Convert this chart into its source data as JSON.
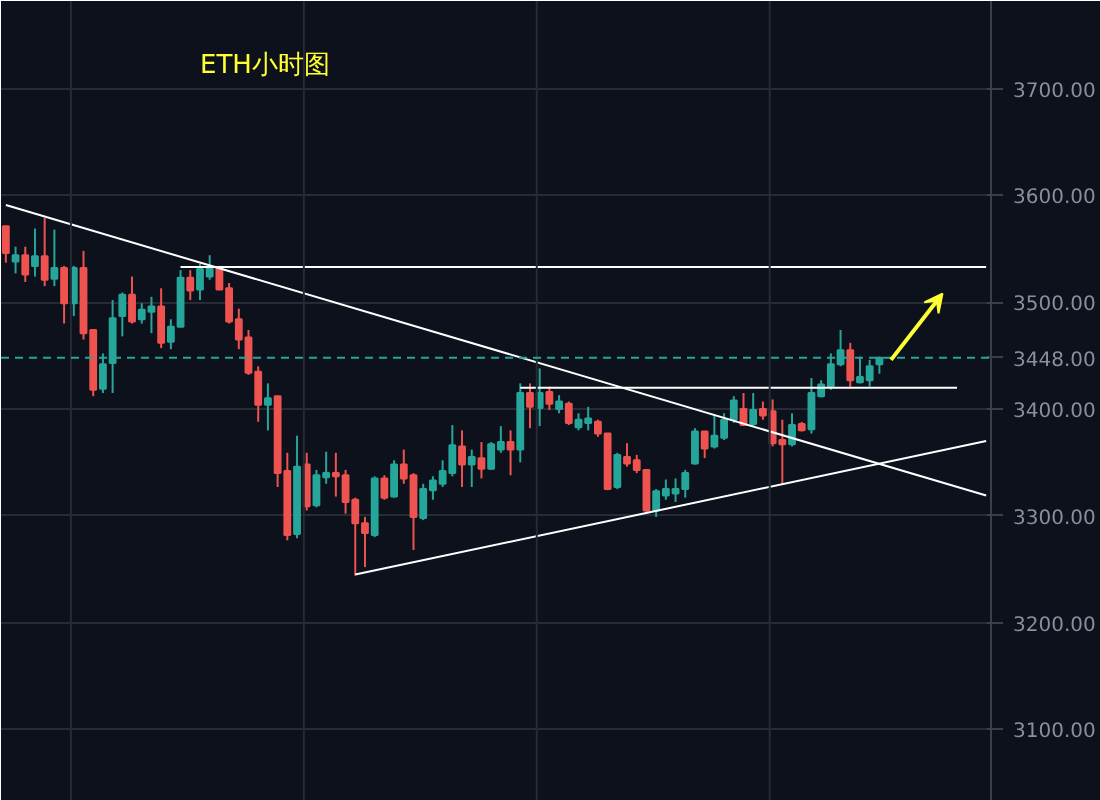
{
  "chart_data": {
    "type": "candlestick",
    "title": "ETH小时图",
    "categories": [
      null,
      null,
      null,
      null,
      null,
      null,
      null,
      null,
      null,
      null,
      null,
      null,
      null,
      null,
      null,
      null,
      null,
      null,
      null,
      null,
      null,
      null,
      null,
      null,
      null,
      null,
      null,
      null,
      null,
      null,
      null,
      null,
      null,
      null,
      null,
      null,
      null,
      null,
      null,
      null,
      null,
      null,
      null,
      null,
      null,
      null,
      null,
      null,
      null,
      null,
      null,
      null,
      null,
      null,
      null,
      null,
      null,
      null,
      null,
      null,
      null,
      null,
      null,
      null,
      null,
      null,
      null,
      null,
      null,
      null,
      null,
      null,
      null,
      null,
      null,
      null,
      null,
      null,
      null,
      null,
      null,
      null,
      null,
      null,
      null,
      null,
      null,
      null,
      null,
      null,
      null,
      null,
      null,
      null,
      null,
      null,
      null,
      null,
      null,
      null,
      null,
      null
    ],
    "ohlc": [
      [
        3571,
        3571,
        3537,
        3546
      ],
      [
        3538,
        3552,
        3527,
        3544
      ],
      [
        3544,
        3552,
        3519,
        3526
      ],
      [
        3534,
        3569,
        3524,
        3543
      ],
      [
        3543,
        3579,
        3515,
        3521
      ],
      [
        3522,
        3568,
        3515,
        3532
      ],
      [
        3532,
        3534,
        3480,
        3499
      ],
      [
        3499,
        3534,
        3487,
        3532
      ],
      [
        3532,
        3548,
        3465,
        3471
      ],
      [
        3474,
        3474,
        3412,
        3418
      ],
      [
        3419,
        3452,
        3415,
        3442
      ],
      [
        3443,
        3502,
        3415,
        3485
      ],
      [
        3487,
        3509,
        3468,
        3507
      ],
      [
        3507,
        3524,
        3480,
        3482
      ],
      [
        3484,
        3499,
        3480,
        3493
      ],
      [
        3491,
        3505,
        3471,
        3496
      ],
      [
        3496,
        3513,
        3457,
        3462
      ],
      [
        3463,
        3484,
        3456,
        3477
      ],
      [
        3477,
        3530,
        3477,
        3523
      ],
      [
        3523,
        3530,
        3502,
        3511
      ],
      [
        3512,
        3536,
        3502,
        3531
      ],
      [
        3524,
        3544,
        3521,
        3532
      ],
      [
        3532,
        3532,
        3512,
        3512
      ],
      [
        3513,
        3518,
        3480,
        3482
      ],
      [
        3484,
        3494,
        3456,
        3465
      ],
      [
        3467,
        3474,
        3432,
        3434
      ],
      [
        3435,
        3440,
        3388,
        3404
      ],
      [
        3404,
        3424,
        3380,
        3410
      ],
      [
        3412,
        3412,
        3327,
        3340
      ],
      [
        3342,
        3359,
        3277,
        3282
      ],
      [
        3283,
        3375,
        3279,
        3346
      ],
      [
        3348,
        3359,
        3305,
        3309
      ],
      [
        3310,
        3343,
        3308,
        3338
      ],
      [
        3336,
        3360,
        3330,
        3340
      ],
      [
        3340,
        3359,
        3318,
        3337
      ],
      [
        3338,
        3343,
        3302,
        3313
      ],
      [
        3315,
        3317,
        3244,
        3293
      ],
      [
        3293,
        3299,
        3252,
        3284
      ],
      [
        3282,
        3337,
        3280,
        3335
      ],
      [
        3335,
        3338,
        3315,
        3317
      ],
      [
        3318,
        3352,
        3317,
        3348
      ],
      [
        3348,
        3362,
        3330,
        3335
      ],
      [
        3338,
        3340,
        3268,
        3299
      ],
      [
        3298,
        3330,
        3296,
        3325
      ],
      [
        3324,
        3337,
        3315,
        3333
      ],
      [
        3330,
        3352,
        3327,
        3342
      ],
      [
        3340,
        3385,
        3337,
        3366
      ],
      [
        3365,
        3380,
        3327,
        3348
      ],
      [
        3348,
        3362,
        3327,
        3355
      ],
      [
        3354,
        3369,
        3335,
        3344
      ],
      [
        3344,
        3369,
        3343,
        3367
      ],
      [
        3362,
        3384,
        3359,
        3369
      ],
      [
        3369,
        3380,
        3338,
        3362
      ],
      [
        3362,
        3424,
        3350,
        3415
      ],
      [
        3415,
        3424,
        3382,
        3402
      ],
      [
        3401,
        3438,
        3384,
        3415
      ],
      [
        3416,
        3421,
        3399,
        3405
      ],
      [
        3400,
        3413,
        3396,
        3407
      ],
      [
        3405,
        3407,
        3385,
        3387
      ],
      [
        3383,
        3396,
        3380,
        3390
      ],
      [
        3387,
        3402,
        3380,
        3391
      ],
      [
        3388,
        3390,
        3374,
        3377
      ],
      [
        3377,
        3377,
        3324,
        3325
      ],
      [
        3327,
        3359,
        3325,
        3357
      ],
      [
        3355,
        3368,
        3346,
        3349
      ],
      [
        3352,
        3357,
        3340,
        3343
      ],
      [
        3343,
        3343,
        3302,
        3305
      ],
      [
        3305,
        3325,
        3299,
        3323
      ],
      [
        3319,
        3334,
        3315,
        3325
      ],
      [
        3321,
        3335,
        3313,
        3325
      ],
      [
        3325,
        3343,
        3317,
        3340
      ],
      [
        3349,
        3382,
        3348,
        3379
      ],
      [
        3379,
        3379,
        3354,
        3363
      ],
      [
        3365,
        3394,
        3363,
        3375
      ],
      [
        3373,
        3396,
        3371,
        3390
      ],
      [
        3390,
        3412,
        3387,
        3408
      ],
      [
        3400,
        3415,
        3384,
        3385
      ],
      [
        3386,
        3415,
        3384,
        3399
      ],
      [
        3400,
        3407,
        3390,
        3394
      ],
      [
        3398,
        3409,
        3365,
        3368
      ],
      [
        3371,
        3390,
        3330,
        3367
      ],
      [
        3367,
        3396,
        3365,
        3385
      ],
      [
        3386,
        3388,
        3379,
        3380
      ],
      [
        3381,
        3429,
        3377,
        3415
      ],
      [
        3412,
        3427,
        3411,
        3423
      ],
      [
        3421,
        3452,
        3418,
        3442
      ],
      [
        3442,
        3474,
        3440,
        3455
      ],
      [
        3455,
        3462,
        3419,
        3427
      ],
      [
        3425,
        3449,
        3424,
        3430
      ],
      [
        3427,
        3446,
        3421,
        3440
      ],
      [
        3442,
        3449,
        3433,
        3448
      ],
      null,
      null,
      null,
      null,
      null,
      null,
      null,
      null,
      null,
      null,
      null
    ],
    "series": [
      {
        "type": "line",
        "color": "#ffffff",
        "values": [
          3591,
          null,
          null,
          null,
          null,
          null,
          null,
          null,
          null,
          null,
          null,
          null,
          null,
          null,
          null,
          null,
          null,
          null,
          null,
          null,
          null,
          null,
          null,
          null,
          null,
          null,
          null,
          null,
          null,
          null,
          null,
          null,
          null,
          null,
          null,
          null,
          null,
          null,
          null,
          null,
          null,
          null,
          null,
          null,
          null,
          null,
          null,
          null,
          null,
          null,
          null,
          null,
          null,
          null,
          null,
          null,
          null,
          null,
          null,
          null,
          null,
          null,
          null,
          null,
          null,
          null,
          null,
          null,
          null,
          null,
          null,
          null,
          null,
          null,
          null,
          null,
          null,
          null,
          null,
          null,
          null,
          null,
          null,
          null,
          null,
          null,
          null,
          null,
          null,
          null,
          null,
          null,
          null,
          null,
          null,
          null,
          null,
          null,
          null,
          null,
          null,
          3319
        ]
      },
      {
        "type": "line",
        "color": "#ffffff",
        "values": [
          null,
          null,
          null,
          null,
          null,
          null,
          null,
          null,
          null,
          null,
          null,
          null,
          null,
          null,
          null,
          null,
          null,
          null,
          3533,
          null,
          null,
          null,
          null,
          null,
          null,
          null,
          null,
          null,
          null,
          null,
          null,
          null,
          null,
          null,
          null,
          null,
          null,
          null,
          null,
          null,
          null,
          null,
          null,
          null,
          null,
          null,
          null,
          null,
          null,
          null,
          null,
          null,
          null,
          null,
          null,
          null,
          null,
          null,
          null,
          null,
          null,
          null,
          null,
          null,
          null,
          null,
          null,
          null,
          null,
          null,
          null,
          null,
          null,
          null,
          null,
          null,
          null,
          null,
          null,
          null,
          null,
          null,
          null,
          null,
          null,
          null,
          null,
          null,
          null,
          null,
          null,
          null,
          null,
          null,
          null,
          null,
          null,
          null,
          null,
          null,
          null,
          3533
        ]
      },
      {
        "type": "line",
        "color": "#ffffff",
        "values": [
          null,
          null,
          null,
          null,
          null,
          null,
          null,
          null,
          null,
          null,
          null,
          null,
          null,
          null,
          null,
          null,
          null,
          null,
          null,
          null,
          null,
          null,
          null,
          null,
          null,
          null,
          null,
          null,
          null,
          null,
          null,
          null,
          null,
          null,
          null,
          null,
          null,
          null,
          null,
          null,
          null,
          null,
          null,
          null,
          null,
          null,
          null,
          null,
          null,
          null,
          null,
          null,
          null,
          3420,
          null,
          null,
          null,
          null,
          null,
          null,
          null,
          null,
          null,
          null,
          null,
          null,
          null,
          null,
          null,
          null,
          null,
          null,
          null,
          null,
          null,
          null,
          null,
          null,
          null,
          null,
          null,
          null,
          null,
          null,
          null,
          null,
          null,
          null,
          null,
          null,
          null,
          null,
          null,
          null,
          null,
          null,
          null,
          null,
          3420,
          null,
          null,
          null
        ]
      },
      {
        "type": "line",
        "color": "#ffffff",
        "values": [
          null,
          null,
          null,
          null,
          null,
          null,
          null,
          null,
          null,
          null,
          null,
          null,
          null,
          null,
          null,
          null,
          null,
          null,
          null,
          null,
          null,
          null,
          null,
          null,
          null,
          null,
          null,
          null,
          null,
          null,
          null,
          null,
          null,
          null,
          null,
          null,
          3245,
          null,
          null,
          null,
          null,
          null,
          null,
          null,
          null,
          null,
          null,
          null,
          null,
          null,
          null,
          null,
          null,
          null,
          null,
          null,
          null,
          null,
          null,
          null,
          null,
          null,
          null,
          null,
          null,
          null,
          null,
          null,
          null,
          null,
          null,
          null,
          null,
          null,
          null,
          null,
          null,
          null,
          null,
          null,
          null,
          null,
          null,
          null,
          null,
          null,
          null,
          null,
          null,
          null,
          null,
          null,
          null,
          null,
          null,
          null,
          null,
          null,
          null,
          null,
          null,
          3370
        ]
      }
    ],
    "ylim": [
      3033,
      3782
    ],
    "yticks": [
      {
        "value": 3100,
        "label": "3100.00"
      },
      {
        "value": 3200,
        "label": "3200.00"
      },
      {
        "value": 3300,
        "label": "3300.00"
      },
      {
        "value": 3400,
        "label": "3400.00"
      },
      {
        "value": 3500,
        "label": "3500.00"
      },
      {
        "value": 3600,
        "label": "3600.00"
      },
      {
        "value": 3700,
        "label": "3700.00"
      }
    ],
    "ref_lines": [
      {
        "axis": "y",
        "value": 3448,
        "label": "3448.00",
        "color": "#26a69a",
        "line_style": "dashed"
      }
    ],
    "grid": true
  }
}
